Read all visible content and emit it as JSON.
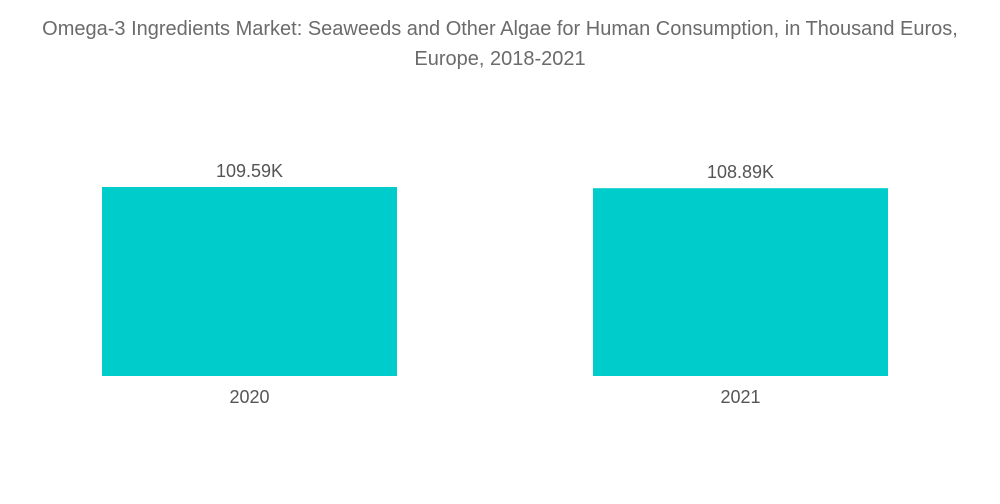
{
  "chart_data": {
    "type": "bar",
    "title": "Omega-3 Ingredients Market: Seaweeds and Other Algae for Human Consumption, in Thousand Euros, Europe, 2018-2021",
    "categories": [
      "2020",
      "2021"
    ],
    "values": [
      109.59,
      108.89
    ],
    "data_labels": [
      "109.59K",
      "108.89K"
    ],
    "xlabel": "",
    "ylabel": "",
    "ylim": [
      0,
      109.59
    ],
    "grid": false,
    "legend": "none",
    "colors": {
      "bar": "#00cccc",
      "text": "#555555",
      "title": "#6b6b6b"
    }
  }
}
